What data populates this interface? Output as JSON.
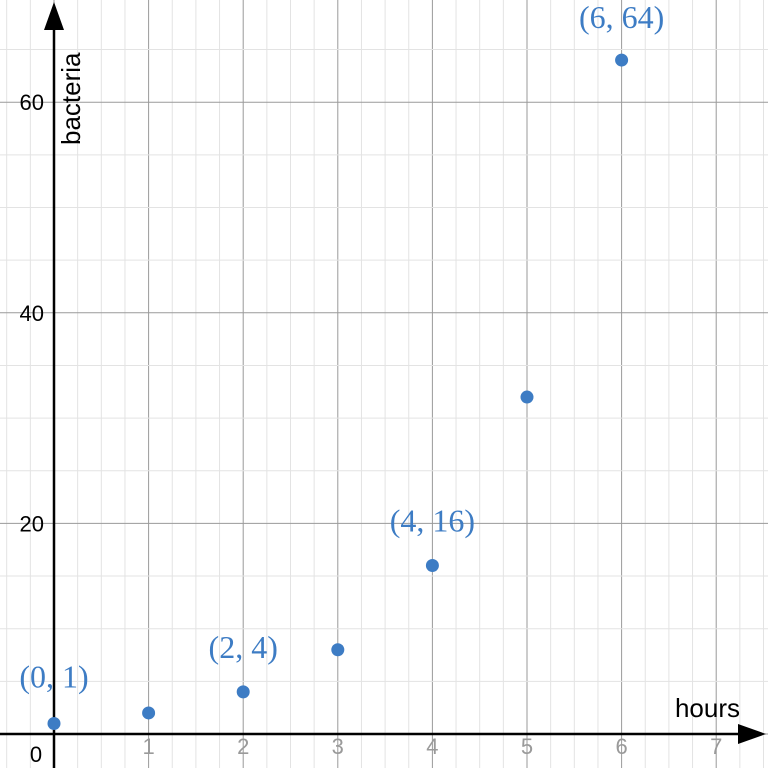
{
  "chart_data": {
    "type": "scatter",
    "title": "",
    "xlabel": "hours",
    "ylabel": "bacteria",
    "xlim": [
      -0.6,
      7.5
    ],
    "ylim": [
      -3.5,
      69
    ],
    "x_ticks": [
      "1",
      "2",
      "3",
      "4",
      "5",
      "6",
      "7"
    ],
    "x_tick_values": [
      1,
      2,
      3,
      4,
      5,
      6,
      7
    ],
    "y_ticks": [
      "20",
      "40",
      "60"
    ],
    "y_tick_values": [
      20,
      40,
      60
    ],
    "origin_label": "0",
    "grid": true,
    "x": [
      0,
      1,
      2,
      3,
      4,
      5,
      6
    ],
    "y": [
      1,
      2,
      4,
      8,
      16,
      32,
      64
    ],
    "annotations": [
      {
        "x": 0,
        "y": 1,
        "text": "(0, 1)"
      },
      {
        "x": 2,
        "y": 4,
        "text": "(2, 4)"
      },
      {
        "x": 4,
        "y": 16,
        "text": "(4, 16)"
      },
      {
        "x": 6,
        "y": 64,
        "text": "(6, 64)"
      }
    ],
    "color": "#3d7cc4"
  }
}
